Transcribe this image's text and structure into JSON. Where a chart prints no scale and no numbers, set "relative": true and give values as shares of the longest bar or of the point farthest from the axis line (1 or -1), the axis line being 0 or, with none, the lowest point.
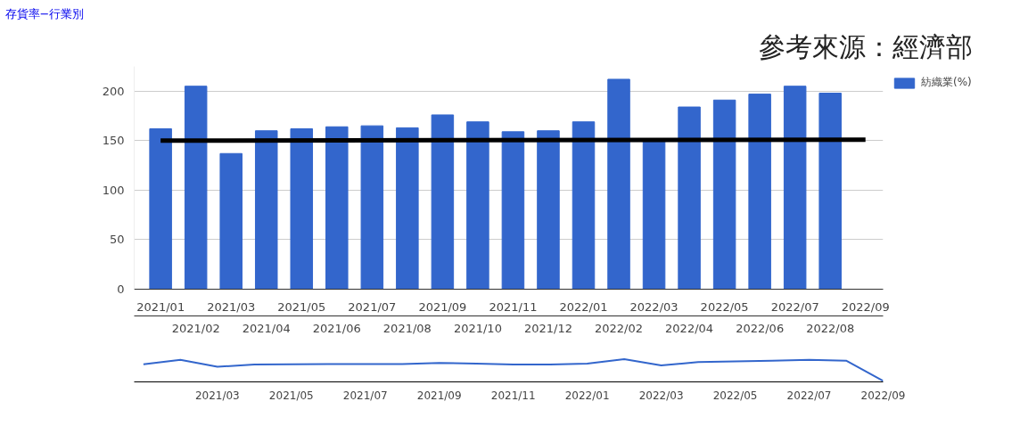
{
  "chart_data": [
    {
      "type": "bar",
      "title": "存貨率−行業別",
      "annotations": [
        "參考來源：經濟部"
      ],
      "categories": [
        "2021/01",
        "2021/02",
        "2021/03",
        "2021/04",
        "2021/05",
        "2021/06",
        "2021/07",
        "2021/08",
        "2021/09",
        "2021/10",
        "2021/11",
        "2021/12",
        "2022/01",
        "2022/02",
        "2022/03",
        "2022/04",
        "2022/05",
        "2022/06",
        "2022/07",
        "2022/08",
        "2022/09"
      ],
      "series": [
        {
          "name": "紡織業(%)",
          "color": "#3366cc",
          "values": [
            162,
            205,
            137,
            160,
            162,
            164,
            165,
            163,
            176,
            169,
            159,
            160,
            169,
            212,
            150,
            184,
            191,
            197,
            205,
            198,
            null
          ]
        },
        {
          "type": "line",
          "color": "#000000",
          "x": [
            "2021/01",
            "2022/09"
          ],
          "values": [
            150,
            151
          ]
        }
      ],
      "ylim": [
        0,
        225
      ],
      "yticks": [
        0,
        50,
        100,
        150,
        200
      ],
      "grid": "y",
      "legend": "top right"
    },
    {
      "type": "line",
      "relative": true,
      "categories": [
        null,
        null,
        "2021/03",
        null,
        "2021/05",
        null,
        "2021/07",
        null,
        "2021/09",
        null,
        "2021/11",
        null,
        "2022/01",
        null,
        "2022/03",
        null,
        "2022/05",
        null,
        "2022/07",
        null,
        "2022/09"
      ],
      "series": [
        {
          "color": "#3366cc",
          "values": [
            0.76,
            0.97,
            0.65,
            0.75,
            0.76,
            0.77,
            0.78,
            0.77,
            0.83,
            0.8,
            0.75,
            0.75,
            0.8,
            1,
            0.71,
            0.87,
            0.9,
            0.93,
            0.97,
            0.93,
            0
          ]
        }
      ]
    }
  ]
}
